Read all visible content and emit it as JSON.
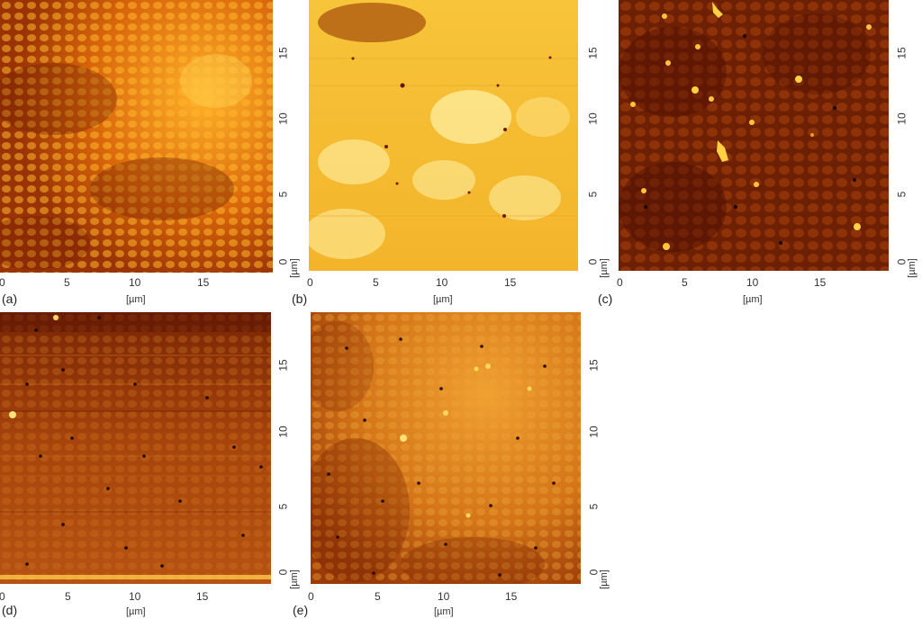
{
  "unit_label": "[µm]",
  "panels": [
    {
      "tag": "(a)",
      "xticks": [
        "0",
        "5",
        "10",
        "15"
      ],
      "yticks": [
        "0",
        "5",
        "10",
        "15"
      ],
      "palette": [
        "#7a1f02",
        "#b84a04",
        "#e58a14",
        "#ffcf4a"
      ]
    },
    {
      "tag": "(b)",
      "xticks": [
        "0",
        "5",
        "10",
        "15"
      ],
      "yticks": [
        "0",
        "5",
        "10",
        "15"
      ],
      "palette": [
        "#e8a520",
        "#f6c83a",
        "#ffe068",
        "#fff0a0"
      ]
    },
    {
      "tag": "(c)",
      "xticks": [
        "0",
        "5",
        "10",
        "15"
      ],
      "yticks": [
        "0",
        "5",
        "10",
        "15"
      ],
      "palette": [
        "#4a0d02",
        "#7d2505",
        "#b04c0c",
        "#ffd040"
      ]
    },
    {
      "tag": "(d)",
      "xticks": [
        "0",
        "5",
        "10",
        "15"
      ],
      "yticks": [
        "0",
        "5",
        "10",
        "15"
      ],
      "palette": [
        "#5e1603",
        "#94380a",
        "#c46616",
        "#ffd865"
      ]
    },
    {
      "tag": "(e)",
      "xticks": [
        "0",
        "5",
        "10",
        "15"
      ],
      "yticks": [
        "0",
        "5",
        "10",
        "15"
      ],
      "palette": [
        "#8a2e06",
        "#c46214",
        "#e99a28",
        "#ffe070"
      ]
    }
  ]
}
